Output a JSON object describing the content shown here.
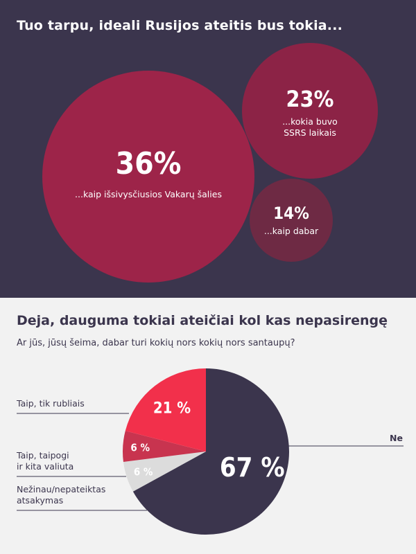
{
  "header": {
    "title": "Tuo tarpu, ideali Rusijos ateitis bus tokia..."
  },
  "section2": {
    "title": "Deja, dauguma tokiai ateičiai kol kas nepasirengę",
    "question": "Ar jūs, jūsų šeima, dabar turi kokių nors kokių nors santaupų?"
  },
  "colors": {
    "background_top": "#3b354d",
    "bubble_large": "#9d2449",
    "bubble_medium": "#8c2346",
    "bubble_small": "#6e2a44",
    "pie_ne": "#3b354d",
    "pie_rubles": "#f2304b",
    "pie_foreign": "#c8344f",
    "pie_unknown": "#dcdcdc"
  },
  "chart_data": [
    {
      "type": "bubble",
      "title": "Tuo tarpu, ideali Rusijos ateitis bus tokia...",
      "items": [
        {
          "value": 36,
          "value_label": "36%",
          "label_lines": [
            "...kaip išsivysčiusios Vakarų šalies"
          ]
        },
        {
          "value": 23,
          "value_label": "23%",
          "label_lines": [
            "...kokia buvo",
            "SSRS laikais"
          ]
        },
        {
          "value": 14,
          "value_label": "14%",
          "label_lines": [
            "...kaip dabar"
          ]
        }
      ]
    },
    {
      "type": "pie",
      "title": "Deja, dauguma tokiai ateičiai kol kas nepasirengę",
      "subtitle": "Ar jūs, jūsų šeima, dabar turi kokių nors kokių nors santaupų?",
      "slices": [
        {
          "label_lines": [
            "Ne"
          ],
          "value": 67,
          "value_label": "67 %"
        },
        {
          "label_lines": [
            "Nežinau/nepateiktas",
            "atsakymas"
          ],
          "value": 6,
          "value_label": "6 %"
        },
        {
          "label_lines": [
            "Taip, taipogi",
            "ir kita valiuta"
          ],
          "value": 6,
          "value_label": "6 %"
        },
        {
          "label_lines": [
            "Taip, tik rubliais"
          ],
          "value": 21,
          "value_label": "21 %"
        }
      ]
    }
  ]
}
